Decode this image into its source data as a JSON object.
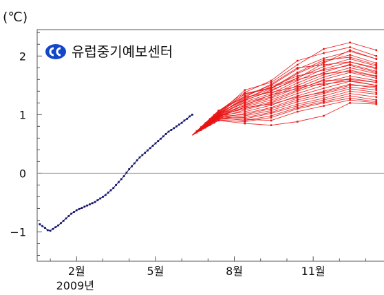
{
  "chart_data": {
    "type": "line",
    "unit_label": "(℃)",
    "logo_text": "유럽중기예보센터",
    "colors": {
      "observed": "#16166e",
      "forecast": "#e81414",
      "logo": "#1446c8",
      "zero_line": "#9a9a9a",
      "axis": "#555555"
    },
    "x_tick_labels": [
      "2월",
      "5월",
      "8월",
      "11월"
    ],
    "x_tick_months": [
      2,
      5,
      8,
      11
    ],
    "x_year_label": "2009년",
    "x_range_months": [
      0.5,
      13.85
    ],
    "y_ticks": [
      -1,
      0,
      1,
      2
    ],
    "y_range": [
      -1.5,
      2.45
    ],
    "observed": {
      "x": [
        0.6,
        0.7,
        0.8,
        0.9,
        1.0,
        1.1,
        1.2,
        1.3,
        1.4,
        1.5,
        1.6,
        1.7,
        1.8,
        1.9,
        2.0,
        2.1,
        2.2,
        2.3,
        2.4,
        2.5,
        2.6,
        2.7,
        2.8,
        2.9,
        3.0,
        3.1,
        3.2,
        3.3,
        3.4,
        3.5,
        3.6,
        3.7,
        3.8,
        3.9,
        4.0,
        4.1,
        4.2,
        4.3,
        4.4,
        4.5,
        4.6,
        4.7,
        4.8,
        4.9,
        5.0,
        5.1,
        5.2,
        5.3,
        5.4,
        5.5,
        5.6,
        5.7,
        5.8,
        5.9,
        6.0,
        6.1,
        6.2,
        6.3,
        6.4
      ],
      "y": [
        -0.87,
        -0.9,
        -0.93,
        -0.97,
        -0.98,
        -0.95,
        -0.92,
        -0.89,
        -0.85,
        -0.81,
        -0.77,
        -0.73,
        -0.69,
        -0.66,
        -0.63,
        -0.61,
        -0.59,
        -0.57,
        -0.55,
        -0.53,
        -0.51,
        -0.49,
        -0.46,
        -0.43,
        -0.4,
        -0.37,
        -0.33,
        -0.29,
        -0.25,
        -0.2,
        -0.15,
        -0.1,
        -0.05,
        0.01,
        0.07,
        0.12,
        0.17,
        0.22,
        0.27,
        0.31,
        0.35,
        0.39,
        0.43,
        0.47,
        0.51,
        0.55,
        0.59,
        0.63,
        0.67,
        0.71,
        0.74,
        0.77,
        0.8,
        0.83,
        0.86,
        0.9,
        0.93,
        0.97,
        1.0
      ]
    },
    "forecast_x": [
      6.4,
      7.4,
      8.4,
      9.4,
      10.4,
      11.4,
      12.4,
      13.4
    ],
    "forecast_members": [
      [
        0.65,
        1.02,
        1.42,
        1.55,
        1.85,
        2.12,
        2.23,
        2.1
      ],
      [
        0.65,
        1.06,
        1.38,
        1.58,
        1.92,
        2.05,
        2.15,
        2.0
      ],
      [
        0.65,
        1.04,
        1.32,
        1.5,
        1.78,
        1.96,
        2.08,
        1.95
      ],
      [
        0.65,
        1.0,
        1.28,
        1.44,
        1.7,
        1.9,
        2.02,
        1.88
      ],
      [
        0.65,
        1.03,
        1.25,
        1.4,
        1.63,
        1.82,
        1.95,
        1.83
      ],
      [
        0.65,
        0.98,
        1.22,
        1.36,
        1.58,
        1.78,
        1.9,
        1.8
      ],
      [
        0.65,
        1.01,
        1.2,
        1.33,
        1.54,
        1.72,
        1.86,
        1.74
      ],
      [
        0.65,
        0.97,
        1.18,
        1.3,
        1.5,
        1.68,
        1.8,
        1.7
      ],
      [
        0.65,
        1.0,
        1.15,
        1.28,
        1.46,
        1.64,
        1.76,
        1.66
      ],
      [
        0.65,
        0.96,
        1.13,
        1.25,
        1.42,
        1.6,
        1.72,
        1.62
      ],
      [
        0.65,
        0.99,
        1.1,
        1.22,
        1.4,
        1.55,
        1.66,
        1.58
      ],
      [
        0.65,
        0.95,
        1.08,
        1.2,
        1.36,
        1.5,
        1.62,
        1.55
      ],
      [
        0.65,
        0.98,
        1.05,
        1.16,
        1.32,
        1.45,
        1.57,
        1.5
      ],
      [
        0.65,
        0.94,
        1.02,
        1.12,
        1.28,
        1.4,
        1.52,
        1.45
      ],
      [
        0.65,
        0.97,
        1.0,
        1.1,
        1.25,
        1.36,
        1.47,
        1.42
      ],
      [
        0.65,
        0.93,
        0.98,
        1.07,
        1.22,
        1.32,
        1.44,
        1.38
      ],
      [
        0.65,
        0.96,
        0.95,
        1.04,
        1.18,
        1.28,
        1.4,
        1.35
      ],
      [
        0.65,
        0.92,
        0.93,
        1.02,
        1.15,
        1.25,
        1.36,
        1.3
      ],
      [
        0.65,
        0.95,
        0.9,
        0.98,
        1.12,
        1.22,
        1.32,
        1.25
      ],
      [
        0.65,
        0.91,
        0.88,
        0.95,
        1.1,
        1.2,
        1.28,
        1.22
      ],
      [
        0.65,
        0.94,
        0.92,
        0.9,
        1.05,
        1.15,
        1.25,
        1.2
      ],
      [
        0.65,
        0.9,
        0.85,
        0.82,
        0.88,
        0.98,
        1.2,
        1.18
      ],
      [
        0.65,
        1.05,
        1.35,
        1.45,
        1.72,
        1.93,
        1.98,
        1.85
      ],
      [
        0.65,
        1.07,
        1.3,
        1.52,
        1.8,
        1.85,
        1.9,
        1.78
      ],
      [
        0.65,
        1.02,
        1.26,
        1.48,
        1.66,
        1.76,
        1.84,
        1.72
      ],
      [
        0.65,
        0.99,
        1.24,
        1.42,
        1.6,
        1.7,
        1.74,
        1.65
      ],
      [
        0.65,
        1.0,
        1.3,
        1.38,
        1.48,
        1.52,
        1.58,
        1.5
      ],
      [
        0.65,
        0.96,
        1.16,
        1.34,
        1.44,
        1.58,
        1.6,
        1.55
      ],
      [
        0.65,
        1.01,
        1.36,
        1.46,
        1.62,
        1.88,
        2.1,
        1.95
      ],
      [
        0.65,
        0.97,
        1.12,
        1.18,
        1.3,
        1.38,
        1.5,
        1.48
      ]
    ]
  }
}
